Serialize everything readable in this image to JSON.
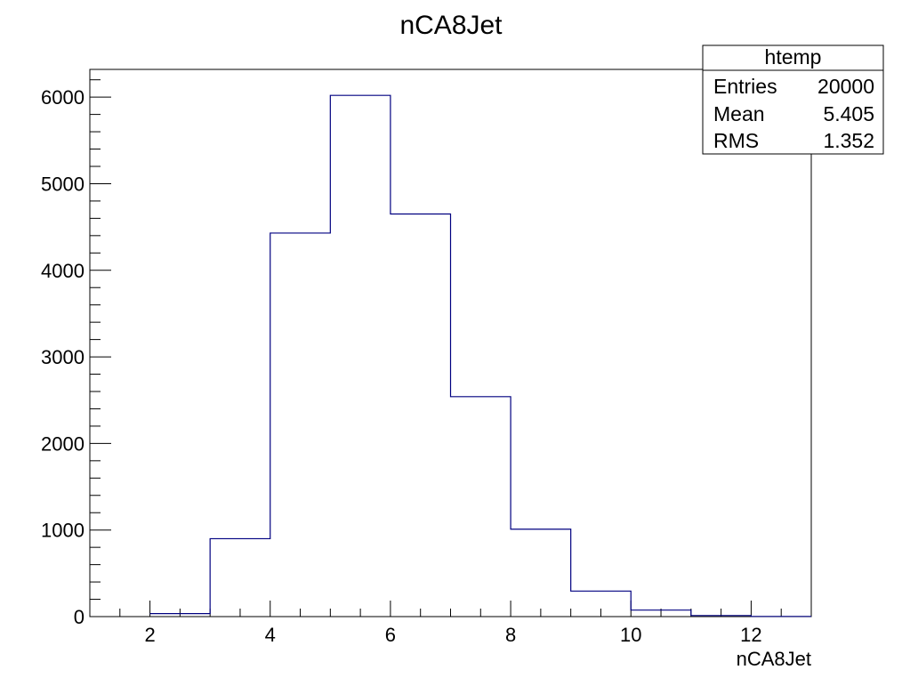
{
  "chart_data": {
    "type": "bar",
    "style": "histogram-step",
    "title": "nCA8Jet",
    "xlabel": "nCA8Jet",
    "ylabel": "",
    "xlim": [
      1,
      13
    ],
    "ylim": [
      0,
      6320
    ],
    "bin_width": 1,
    "bins": [
      {
        "x_low": 2,
        "value": 35
      },
      {
        "x_low": 3,
        "value": 900
      },
      {
        "x_low": 4,
        "value": 4430
      },
      {
        "x_low": 5,
        "value": 6020
      },
      {
        "x_low": 6,
        "value": 4650
      },
      {
        "x_low": 7,
        "value": 2540
      },
      {
        "x_low": 8,
        "value": 1010
      },
      {
        "x_low": 9,
        "value": 295
      },
      {
        "x_low": 10,
        "value": 75
      },
      {
        "x_low": 11,
        "value": 12
      },
      {
        "x_low": 12,
        "value": 2
      }
    ],
    "x_major_ticks": [
      2,
      4,
      6,
      8,
      10,
      12
    ],
    "x_tick_labels": [
      "2",
      "4",
      "6",
      "8",
      "10",
      "12"
    ],
    "y_major_ticks": [
      0,
      1000,
      2000,
      3000,
      4000,
      5000,
      6000
    ],
    "y_tick_labels": [
      "0",
      "1000",
      "2000",
      "3000",
      "4000",
      "5000",
      "6000"
    ],
    "grid": false,
    "line_color": "#000080",
    "stats_box": {
      "placement": "top-right",
      "name": "htemp",
      "rows": [
        {
          "label": "Entries",
          "value": "20000"
        },
        {
          "label": "Mean",
          "value": "5.405"
        },
        {
          "label": "RMS",
          "value": "1.352"
        }
      ]
    }
  }
}
